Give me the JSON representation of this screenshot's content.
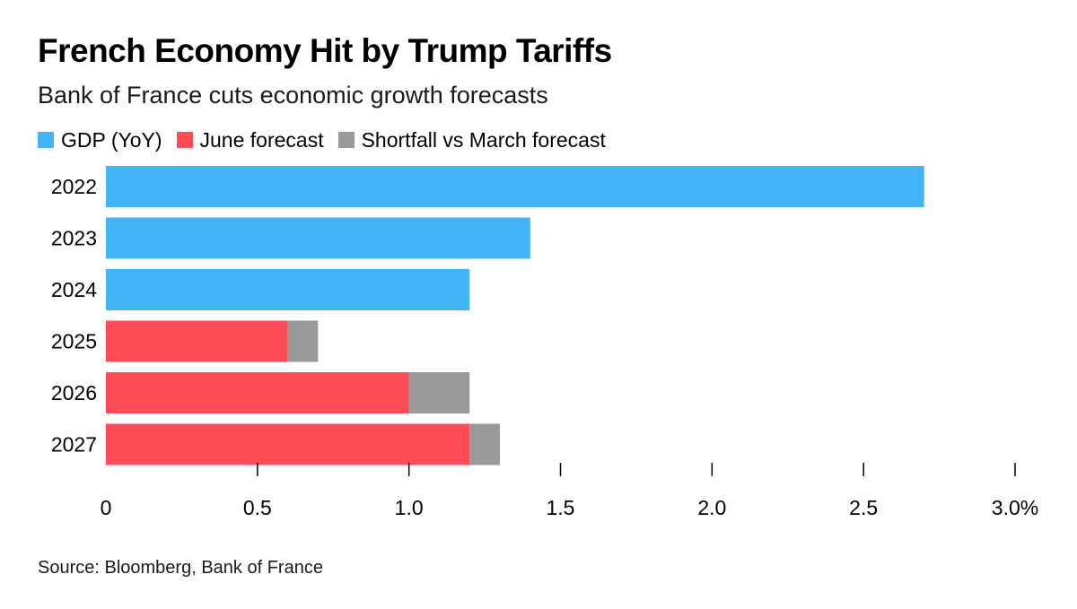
{
  "chart_data": {
    "type": "bar",
    "stacked": true,
    "orientation": "horizontal",
    "title": "French Economy Hit by Trump Tariffs",
    "subtitle": "Bank of France cuts economic growth forecasts",
    "categories": [
      "2022",
      "2023",
      "2024",
      "2025",
      "2026",
      "2027"
    ],
    "series": [
      {
        "name": "GDP (YoY)",
        "color": "#44b4f9",
        "values": [
          2.7,
          1.4,
          1.2,
          null,
          null,
          null
        ]
      },
      {
        "name": "June forecast",
        "color": "#fd4b57",
        "values": [
          null,
          null,
          null,
          0.6,
          1.0,
          1.2
        ]
      },
      {
        "name": "Shortfall vs March forecast",
        "color": "#999999",
        "values": [
          null,
          null,
          null,
          0.1,
          0.2,
          0.1
        ]
      }
    ],
    "xlim": [
      0,
      3.0
    ],
    "x_ticks": [
      0,
      0.5,
      1.0,
      1.5,
      2.0,
      2.5,
      3.0
    ],
    "x_tick_labels": [
      "0",
      "0.5",
      "1.0",
      "1.5",
      "2.0",
      "2.5",
      "3.0%"
    ],
    "xlabel": "",
    "ylabel": "",
    "legend_position": "top-left",
    "grid": false
  },
  "source": "Source: Bloomberg, Bank of France"
}
